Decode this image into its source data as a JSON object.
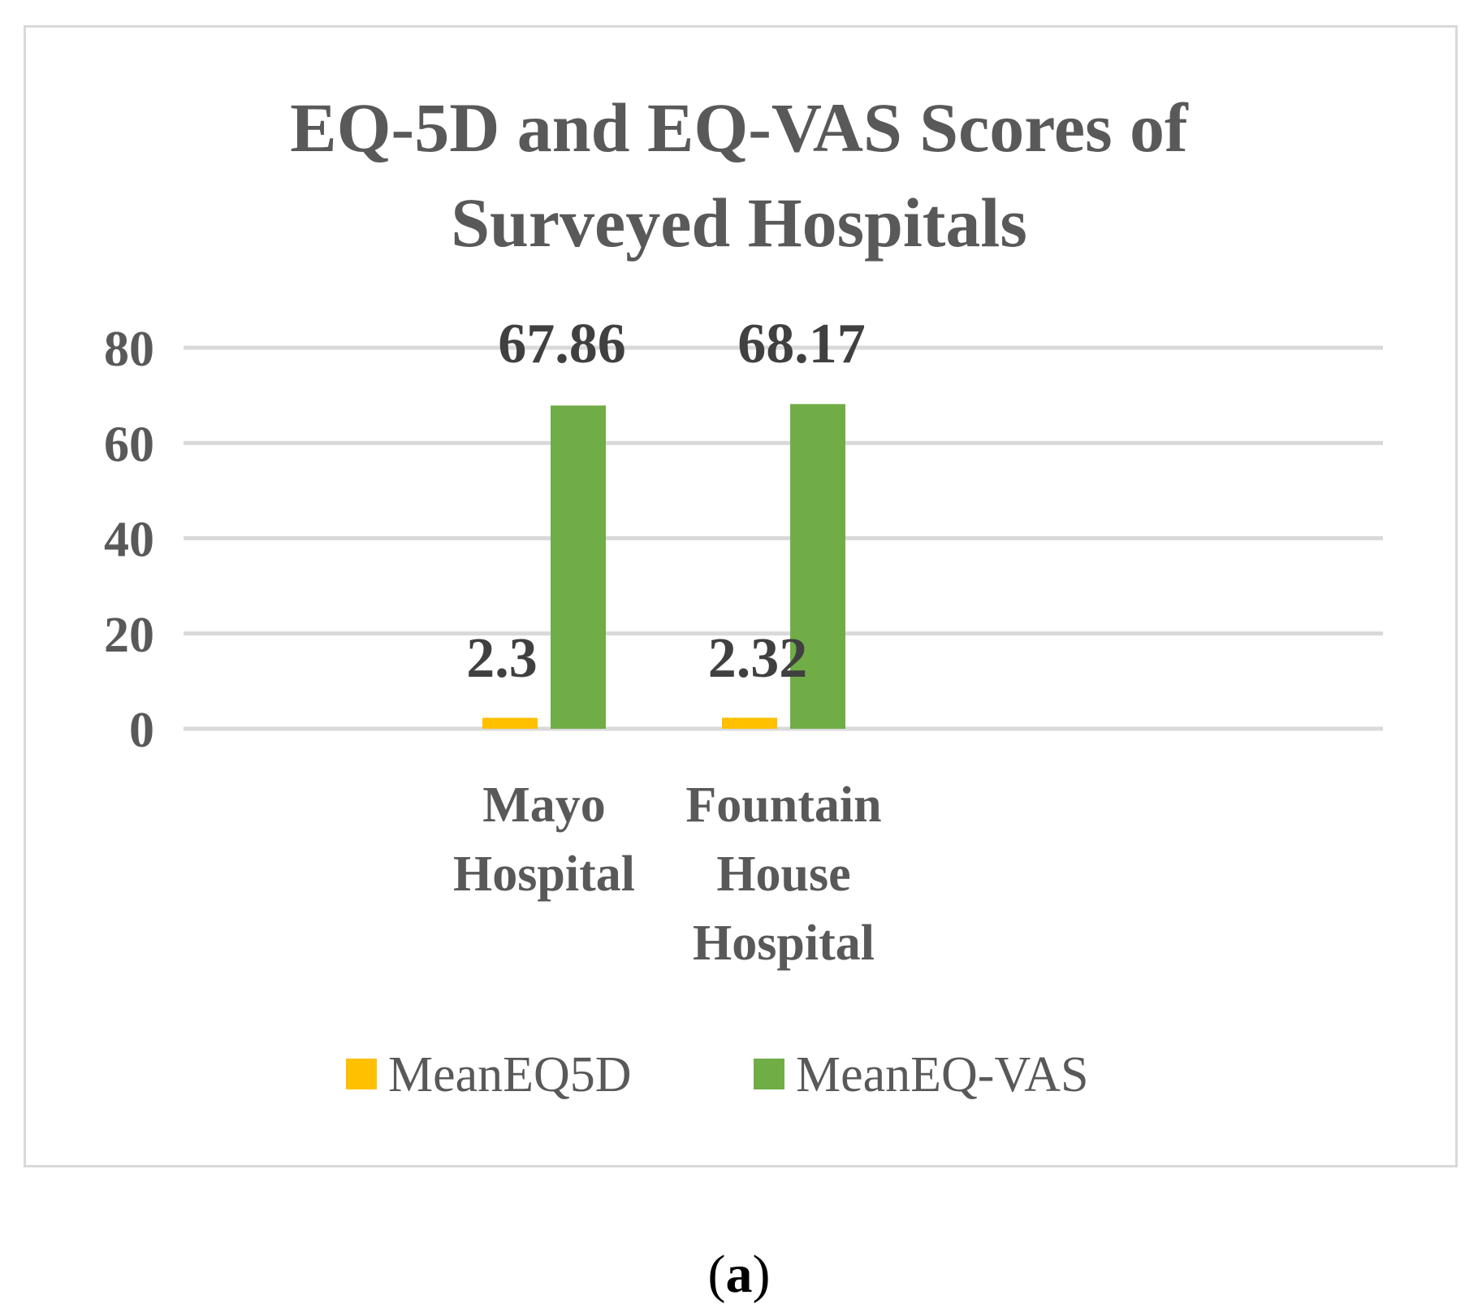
{
  "chart_data": {
    "type": "bar",
    "title_lines": [
      "EQ-5D and EQ-VAS Scores of",
      "Surveyed Hospitals"
    ],
    "categories": [
      [
        "Mayo",
        "Hospital"
      ],
      [
        "Fountain",
        "House",
        "Hospital"
      ]
    ],
    "series": [
      {
        "name": "MeanEQ5D",
        "color": "#ffc000",
        "values": [
          2.3,
          2.32
        ],
        "labels": [
          "2.3",
          "2.32"
        ]
      },
      {
        "name": "MeanEQ-VAS",
        "color": "#70ad47",
        "values": [
          67.86,
          68.17
        ],
        "labels": [
          "67.86",
          "68.17"
        ]
      }
    ],
    "ylim": [
      0,
      80
    ],
    "yticks": [
      0,
      20,
      40,
      60,
      80
    ],
    "grid": true,
    "legend": "bottom",
    "xlabel": "",
    "ylabel": ""
  },
  "caption": {
    "open": "(",
    "letter": "a",
    "close": ")"
  }
}
